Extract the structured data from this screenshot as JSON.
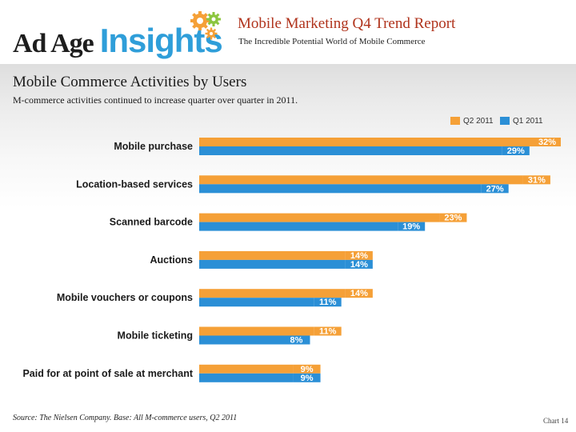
{
  "header": {
    "logo_adage": "Ad Age",
    "logo_insights": "Insights",
    "report_title": "Mobile Marketing Q4 Trend Report",
    "report_subtitle": "The Incredible Potential World of Mobile Commerce"
  },
  "section": {
    "title": "Mobile Commerce Activities by Users",
    "subtitle": "M-commerce activities continued to increase quarter over quarter in 2011."
  },
  "colors": {
    "q2": "#f5a037",
    "q1": "#2b8fd6",
    "title_red": "#b0331c",
    "insights_blue": "#2f9ed9"
  },
  "icons": {
    "logo_gears": "gears-icon"
  },
  "chart_data": {
    "type": "bar",
    "orientation": "horizontal",
    "title": "Mobile Commerce Activities by Users",
    "categories": [
      "Mobile purchase",
      "Location-based services",
      "Scanned barcode",
      "Auctions",
      "Mobile vouchers or coupons",
      "Mobile ticketing",
      "Paid for at point of sale at merchant"
    ],
    "series": [
      {
        "name": "Q2 2011",
        "color": "#f5a037",
        "values": [
          32,
          31,
          23,
          14,
          14,
          11,
          9
        ],
        "labels": [
          "32%",
          "31%",
          "23%",
          "14%",
          "14%",
          "11%",
          "9%"
        ]
      },
      {
        "name": "Q1 2011",
        "color": "#2b8fd6",
        "values": [
          29,
          27,
          19,
          14,
          11,
          8,
          9
        ],
        "labels": [
          "29%",
          "27%",
          "19%",
          "14%",
          "11%",
          "8%",
          "9%"
        ]
      }
    ],
    "xlim": [
      0,
      32
    ],
    "legend": "top-right",
    "unit": "%"
  },
  "footer": {
    "source": "Source: The Nielsen Company. Base: All M-commerce users, Q2 2011",
    "chart_number": "Chart 14"
  }
}
